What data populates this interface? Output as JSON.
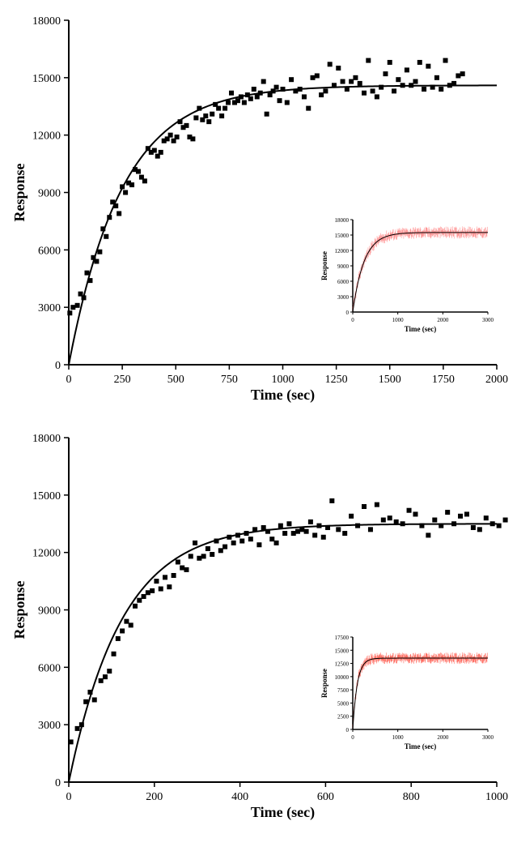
{
  "chart_top": {
    "type": "scatter",
    "xlabel": "Time (sec)",
    "ylabel": "Response",
    "xlabel_fontsize": 18,
    "ylabel_fontsize": 18,
    "tick_fontsize": 14,
    "xlim": [
      0,
      2000
    ],
    "ylim": [
      0,
      18000
    ],
    "xtick_step": 250,
    "ytick_step": 3000,
    "marker_color": "#000000",
    "marker_size": 6,
    "curve_color": "#000000",
    "curve_width": 2,
    "background_color": "#ffffff",
    "axis_color": "#000000",
    "plateau": 14600,
    "rate": 0.004,
    "data": [
      [
        5,
        2700
      ],
      [
        20,
        3000
      ],
      [
        40,
        3100
      ],
      [
        55,
        3700
      ],
      [
        70,
        3500
      ],
      [
        85,
        4800
      ],
      [
        100,
        4400
      ],
      [
        115,
        5600
      ],
      [
        130,
        5400
      ],
      [
        145,
        5900
      ],
      [
        160,
        7100
      ],
      [
        175,
        6700
      ],
      [
        190,
        7700
      ],
      [
        205,
        8500
      ],
      [
        220,
        8300
      ],
      [
        235,
        7900
      ],
      [
        250,
        9300
      ],
      [
        265,
        9000
      ],
      [
        280,
        9500
      ],
      [
        295,
        9400
      ],
      [
        310,
        10200
      ],
      [
        325,
        10100
      ],
      [
        340,
        9800
      ],
      [
        355,
        9600
      ],
      [
        370,
        11300
      ],
      [
        385,
        11100
      ],
      [
        400,
        11200
      ],
      [
        415,
        10900
      ],
      [
        430,
        11100
      ],
      [
        445,
        11700
      ],
      [
        460,
        11800
      ],
      [
        475,
        12000
      ],
      [
        490,
        11700
      ],
      [
        505,
        11900
      ],
      [
        520,
        12700
      ],
      [
        535,
        12400
      ],
      [
        550,
        12500
      ],
      [
        565,
        11900
      ],
      [
        580,
        11800
      ],
      [
        595,
        12900
      ],
      [
        610,
        13400
      ],
      [
        625,
        12800
      ],
      [
        640,
        13000
      ],
      [
        655,
        12700
      ],
      [
        670,
        13100
      ],
      [
        685,
        13600
      ],
      [
        700,
        13400
      ],
      [
        715,
        13000
      ],
      [
        730,
        13400
      ],
      [
        745,
        13700
      ],
      [
        760,
        14200
      ],
      [
        775,
        13700
      ],
      [
        790,
        13800
      ],
      [
        805,
        14000
      ],
      [
        820,
        13700
      ],
      [
        835,
        14100
      ],
      [
        850,
        13900
      ],
      [
        865,
        14400
      ],
      [
        880,
        14000
      ],
      [
        895,
        14200
      ],
      [
        910,
        14800
      ],
      [
        925,
        13100
      ],
      [
        940,
        14100
      ],
      [
        955,
        14300
      ],
      [
        970,
        14500
      ],
      [
        985,
        13800
      ],
      [
        1000,
        14400
      ],
      [
        1020,
        13700
      ],
      [
        1040,
        14900
      ],
      [
        1060,
        14300
      ],
      [
        1080,
        14400
      ],
      [
        1100,
        14000
      ],
      [
        1120,
        13400
      ],
      [
        1140,
        15000
      ],
      [
        1160,
        15100
      ],
      [
        1180,
        14100
      ],
      [
        1200,
        14300
      ],
      [
        1220,
        15700
      ],
      [
        1240,
        14600
      ],
      [
        1260,
        15500
      ],
      [
        1280,
        14800
      ],
      [
        1300,
        14400
      ],
      [
        1320,
        14800
      ],
      [
        1340,
        15000
      ],
      [
        1360,
        14700
      ],
      [
        1380,
        14200
      ],
      [
        1400,
        15900
      ],
      [
        1420,
        14300
      ],
      [
        1440,
        14000
      ],
      [
        1460,
        14500
      ],
      [
        1480,
        15200
      ],
      [
        1500,
        15800
      ],
      [
        1520,
        14300
      ],
      [
        1540,
        14900
      ],
      [
        1560,
        14600
      ],
      [
        1580,
        15400
      ],
      [
        1600,
        14600
      ],
      [
        1620,
        14800
      ],
      [
        1640,
        15800
      ],
      [
        1660,
        14400
      ],
      [
        1680,
        15600
      ],
      [
        1700,
        14500
      ],
      [
        1720,
        15000
      ],
      [
        1740,
        14400
      ],
      [
        1760,
        15900
      ],
      [
        1780,
        14600
      ],
      [
        1800,
        14700
      ],
      [
        1820,
        15100
      ],
      [
        1840,
        15200
      ]
    ],
    "inset": {
      "type": "scatter",
      "xlabel": "Time (sec)",
      "ylabel": "Response",
      "label_fontsize": 9,
      "tick_fontsize": 7,
      "xlim": [
        0,
        3000
      ],
      "ylim": [
        0,
        18000
      ],
      "xtick_step": 1000,
      "ytick_step": 3000,
      "marker_color": "#ff6b6b",
      "curve_color": "#000000",
      "background_color": "#ffffff",
      "axis_color": "#000000",
      "plateau": 15500,
      "rate": 0.004,
      "noise_amp": 1200
    }
  },
  "chart_bottom": {
    "type": "scatter",
    "xlabel": "Time (sec)",
    "ylabel": "Response",
    "xlabel_fontsize": 18,
    "ylabel_fontsize": 18,
    "tick_fontsize": 14,
    "xlim": [
      0,
      1000
    ],
    "ylim": [
      0,
      18000
    ],
    "xtick_step": 200,
    "ytick_step": 3000,
    "marker_color": "#000000",
    "marker_size": 6,
    "curve_color": "#000000",
    "curve_width": 2,
    "background_color": "#ffffff",
    "axis_color": "#000000",
    "plateau": 13500,
    "rate": 0.008,
    "data": [
      [
        5,
        2100
      ],
      [
        20,
        2800
      ],
      [
        30,
        3000
      ],
      [
        40,
        4200
      ],
      [
        50,
        4700
      ],
      [
        60,
        4300
      ],
      [
        75,
        5300
      ],
      [
        85,
        5500
      ],
      [
        95,
        5800
      ],
      [
        105,
        6700
      ],
      [
        115,
        7500
      ],
      [
        125,
        7900
      ],
      [
        135,
        8400
      ],
      [
        145,
        8200
      ],
      [
        155,
        9200
      ],
      [
        165,
        9500
      ],
      [
        175,
        9700
      ],
      [
        185,
        9900
      ],
      [
        195,
        10000
      ],
      [
        205,
        10500
      ],
      [
        215,
        10100
      ],
      [
        225,
        10700
      ],
      [
        235,
        10200
      ],
      [
        245,
        10800
      ],
      [
        255,
        11500
      ],
      [
        265,
        11200
      ],
      [
        275,
        11100
      ],
      [
        285,
        11800
      ],
      [
        295,
        12500
      ],
      [
        305,
        11700
      ],
      [
        315,
        11800
      ],
      [
        325,
        12200
      ],
      [
        335,
        11900
      ],
      [
        345,
        12600
      ],
      [
        355,
        12100
      ],
      [
        365,
        12300
      ],
      [
        375,
        12800
      ],
      [
        385,
        12500
      ],
      [
        395,
        12900
      ],
      [
        405,
        12600
      ],
      [
        415,
        13000
      ],
      [
        425,
        12700
      ],
      [
        435,
        13200
      ],
      [
        445,
        12400
      ],
      [
        455,
        13300
      ],
      [
        465,
        13100
      ],
      [
        475,
        12700
      ],
      [
        485,
        12500
      ],
      [
        495,
        13400
      ],
      [
        505,
        13000
      ],
      [
        515,
        13500
      ],
      [
        525,
        13000
      ],
      [
        535,
        13100
      ],
      [
        545,
        13200
      ],
      [
        555,
        13100
      ],
      [
        565,
        13600
      ],
      [
        575,
        12900
      ],
      [
        585,
        13400
      ],
      [
        595,
        12800
      ],
      [
        605,
        13300
      ],
      [
        615,
        14700
      ],
      [
        630,
        13200
      ],
      [
        645,
        13000
      ],
      [
        660,
        13900
      ],
      [
        675,
        13400
      ],
      [
        690,
        14400
      ],
      [
        705,
        13200
      ],
      [
        720,
        14500
      ],
      [
        735,
        13700
      ],
      [
        750,
        13800
      ],
      [
        765,
        13600
      ],
      [
        780,
        13500
      ],
      [
        795,
        14200
      ],
      [
        810,
        14000
      ],
      [
        825,
        13400
      ],
      [
        840,
        12900
      ],
      [
        855,
        13700
      ],
      [
        870,
        13400
      ],
      [
        885,
        14100
      ],
      [
        900,
        13500
      ],
      [
        915,
        13900
      ],
      [
        930,
        14000
      ],
      [
        945,
        13300
      ],
      [
        960,
        13200
      ],
      [
        975,
        13800
      ],
      [
        990,
        13500
      ],
      [
        1005,
        13400
      ],
      [
        1020,
        13700
      ]
    ],
    "inset": {
      "type": "scatter",
      "xlabel": "Time (sec)",
      "ylabel": "Response",
      "label_fontsize": 9,
      "tick_fontsize": 7,
      "xlim": [
        0,
        3000
      ],
      "ylim": [
        0,
        17500
      ],
      "xtick_step": 1000,
      "ytick_step": 2500,
      "yticks": [
        0,
        2500,
        5000,
        7500,
        10000,
        12500,
        15000,
        17500
      ],
      "marker_color": "#ff3020",
      "curve_color": "#000000",
      "background_color": "#ffffff",
      "axis_color": "#000000",
      "plateau": 13500,
      "rate": 0.01,
      "noise_amp": 1100
    }
  }
}
